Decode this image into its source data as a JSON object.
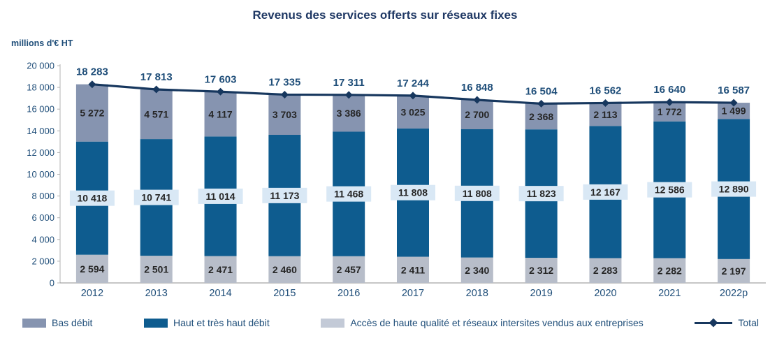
{
  "chart_data": {
    "type": "bar",
    "subtype": "stacked-bars-with-total-line",
    "title": "Revenus des services offerts sur réseaux fixes",
    "unit_label": "millions d'€ HT",
    "categories": [
      "2012",
      "2013",
      "2014",
      "2015",
      "2016",
      "2017",
      "2018",
      "2019",
      "2020",
      "2021",
      "2022p"
    ],
    "series": [
      {
        "name": "Accès de haute qualité et réseaux intersites vendus aux entreprises",
        "color": "#b7bdc9",
        "label_style": "plain",
        "values": [
          2594,
          2501,
          2471,
          2460,
          2457,
          2411,
          2340,
          2312,
          2283,
          2282,
          2197
        ]
      },
      {
        "name": "Haut et très haut débit",
        "color": "#0e5c8f",
        "label_style": "boxed",
        "values": [
          10418,
          10741,
          11014,
          11173,
          11468,
          11808,
          11808,
          11823,
          12167,
          12586,
          12890
        ]
      },
      {
        "name": "Bas débit",
        "color": "#8694b0",
        "label_style": "plain",
        "values": [
          5272,
          4571,
          4117,
          3703,
          3386,
          3025,
          2700,
          2368,
          2113,
          1772,
          1499
        ]
      }
    ],
    "line": {
      "name": "Total",
      "color": "#17375e",
      "values": [
        18283,
        17813,
        17603,
        17335,
        17311,
        17244,
        16848,
        16504,
        16562,
        16640,
        16587
      ]
    },
    "y_axis": {
      "min": 0,
      "max": 20000,
      "step": 2000,
      "tick_labels": [
        "0",
        "2 000",
        "4 000",
        "6 000",
        "8 000",
        "10 000",
        "12 000",
        "14 000",
        "16 000",
        "18 000",
        "20 000"
      ]
    },
    "grid": "off",
    "legend_position": "bottom",
    "label_box_color": "#d9e8f5",
    "legend": [
      {
        "label": "Bas débit",
        "color": "#8694b0",
        "type": "swatch"
      },
      {
        "label": "Haut et très haut débit",
        "color": "#0e5c8f",
        "type": "swatch"
      },
      {
        "label": "Accès de haute qualité et réseaux intersites vendus aux entreprises",
        "color": "#c3cad7",
        "type": "swatch"
      },
      {
        "label": "Total",
        "color": "#17375e",
        "type": "line-marker"
      }
    ]
  }
}
